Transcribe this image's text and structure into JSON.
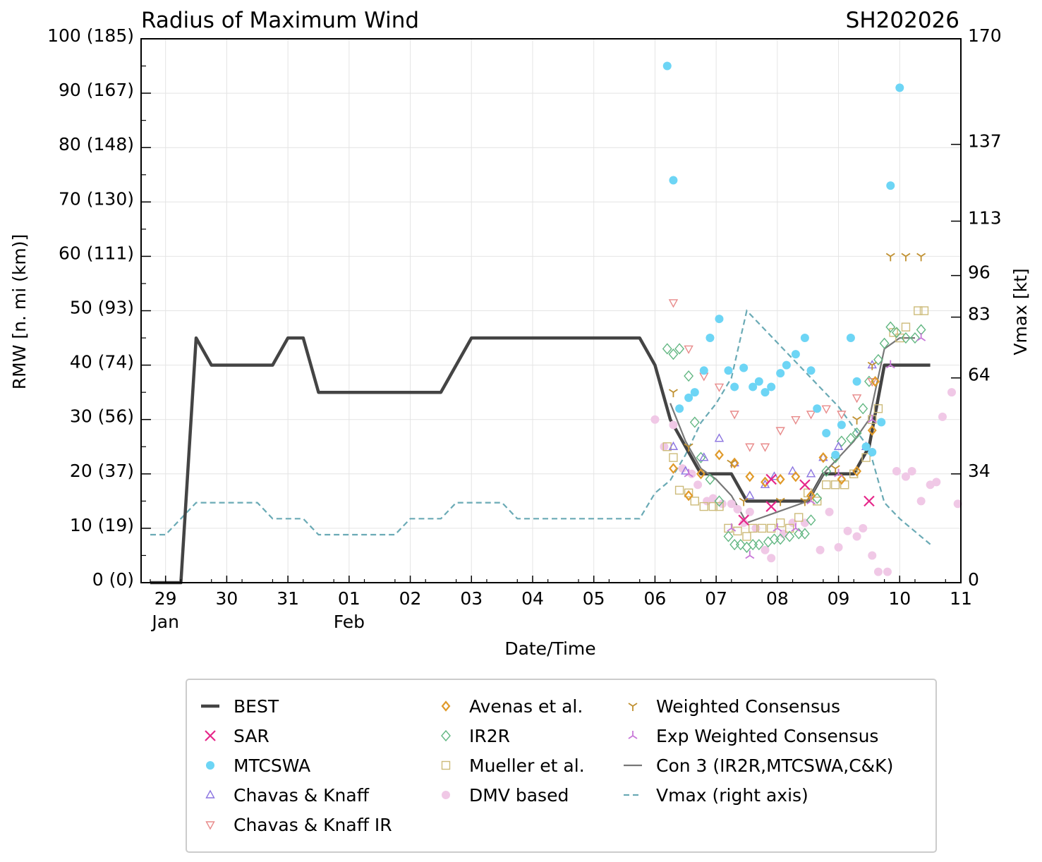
{
  "chart_data": {
    "type": "scatter",
    "title": "Radius of Maximum Wind",
    "storm_id": "SH202026",
    "xlabel": "Date/Time",
    "ylabel": "RMW [n. mi (km)]",
    "y2label": "Vmax [kt]",
    "ylim": [
      0,
      100
    ],
    "y2lim": [
      0,
      170
    ],
    "xlim": [
      -0.4,
      13.0
    ],
    "x_unit": "days since 29 Jan 00Z",
    "x_ticks": [
      {
        "x": 0,
        "day": "29",
        "month": "Jan"
      },
      {
        "x": 1,
        "day": "30",
        "month": ""
      },
      {
        "x": 2,
        "day": "31",
        "month": ""
      },
      {
        "x": 3,
        "day": "01",
        "month": "Feb"
      },
      {
        "x": 4,
        "day": "02",
        "month": ""
      },
      {
        "x": 5,
        "day": "03",
        "month": ""
      },
      {
        "x": 6,
        "day": "04",
        "month": ""
      },
      {
        "x": 7,
        "day": "05",
        "month": ""
      },
      {
        "x": 8,
        "day": "06",
        "month": ""
      },
      {
        "x": 9,
        "day": "07",
        "month": ""
      },
      {
        "x": 10,
        "day": "08",
        "month": ""
      },
      {
        "x": 11,
        "day": "09",
        "month": ""
      },
      {
        "x": 12,
        "day": "10",
        "month": ""
      },
      {
        "x": 13,
        "day": "11",
        "month": ""
      }
    ],
    "y_ticks": [
      {
        "v": 0,
        "label": "0 (0)"
      },
      {
        "v": 10,
        "label": "10 (19)"
      },
      {
        "v": 20,
        "label": "20 (37)"
      },
      {
        "v": 30,
        "label": "30 (56)"
      },
      {
        "v": 40,
        "label": "40 (74)"
      },
      {
        "v": 50,
        "label": "50 (93)"
      },
      {
        "v": 60,
        "label": "60 (111)"
      },
      {
        "v": 70,
        "label": "70 (130)"
      },
      {
        "v": 80,
        "label": "80 (148)"
      },
      {
        "v": 90,
        "label": "90 (167)"
      },
      {
        "v": 100,
        "label": "100 (185)"
      }
    ],
    "y2_ticks": [
      {
        "v": 0,
        "label": "0"
      },
      {
        "v": 34,
        "label": "34"
      },
      {
        "v": 64,
        "label": "64"
      },
      {
        "v": 83,
        "label": "83"
      },
      {
        "v": 96,
        "label": "96"
      },
      {
        "v": 113,
        "label": "113"
      },
      {
        "v": 137,
        "label": "137"
      },
      {
        "v": 170,
        "label": "170"
      }
    ],
    "legend": [
      {
        "key": "best",
        "label": "BEST"
      },
      {
        "key": "sar",
        "label": "SAR"
      },
      {
        "key": "mtcswa",
        "label": "MTCSWA"
      },
      {
        "key": "ck",
        "label": "Chavas & Knaff"
      },
      {
        "key": "ckir",
        "label": "Chavas & Knaff IR"
      },
      {
        "key": "avenas",
        "label": "Avenas et al."
      },
      {
        "key": "ir2r",
        "label": "IR2R"
      },
      {
        "key": "mueller",
        "label": "Mueller et al."
      },
      {
        "key": "dmv",
        "label": "DMV based"
      },
      {
        "key": "wc",
        "label": "Weighted Consensus"
      },
      {
        "key": "ewc",
        "label": "Exp Weighted Consensus"
      },
      {
        "key": "con3",
        "label": "Con 3 (IR2R,MTCSWA,C&K)"
      },
      {
        "key": "vmax",
        "label": "Vmax (right axis)"
      }
    ],
    "colors": {
      "best": "#444444",
      "sar": "#e6278a",
      "mtcswa": "#6dd5f5",
      "ck": "#8b74e0",
      "ckir": "#e88a8a",
      "avenas": "#e09a2a",
      "ir2r": "#63b783",
      "mueller": "#cdbb7a",
      "dmv": "#f0c8e6",
      "wc": "#c09030",
      "ewc": "#c878d8",
      "con3": "#777777",
      "vmax": "#6aaab5"
    },
    "series": {
      "best": [
        [
          -0.25,
          0
        ],
        [
          0.25,
          0
        ],
        [
          0.5,
          45
        ],
        [
          0.75,
          40
        ],
        [
          1.75,
          40
        ],
        [
          2,
          45
        ],
        [
          2.25,
          45
        ],
        [
          2.5,
          35
        ],
        [
          4.5,
          35
        ],
        [
          5,
          45
        ],
        [
          7.75,
          45
        ],
        [
          8,
          40
        ],
        [
          8.25,
          30
        ],
        [
          8.5,
          25
        ],
        [
          8.75,
          20
        ],
        [
          9.25,
          20
        ],
        [
          9.5,
          15
        ],
        [
          10.5,
          15
        ],
        [
          10.75,
          20
        ],
        [
          11.25,
          20
        ],
        [
          11.5,
          25
        ],
        [
          11.75,
          40
        ],
        [
          12.5,
          40
        ]
      ],
      "vmax": [
        [
          -0.25,
          15
        ],
        [
          0,
          15
        ],
        [
          0.5,
          25
        ],
        [
          1.5,
          25
        ],
        [
          1.75,
          20
        ],
        [
          2.25,
          20
        ],
        [
          2.5,
          15
        ],
        [
          3.75,
          15
        ],
        [
          4,
          20
        ],
        [
          4.5,
          20
        ],
        [
          4.75,
          25
        ],
        [
          5.5,
          25
        ],
        [
          5.75,
          20
        ],
        [
          7.75,
          20
        ],
        [
          8,
          28
        ],
        [
          8.25,
          32
        ],
        [
          8.5,
          40
        ],
        [
          8.75,
          50
        ],
        [
          9,
          56
        ],
        [
          9.25,
          64
        ],
        [
          9.5,
          85
        ],
        [
          10,
          75
        ],
        [
          10.5,
          65
        ],
        [
          11,
          55
        ],
        [
          11.5,
          42
        ],
        [
          11.75,
          25
        ],
        [
          12,
          20
        ],
        [
          12.5,
          12
        ]
      ],
      "con3": [
        [
          8.25,
          33
        ],
        [
          8.5,
          26
        ],
        [
          8.75,
          21
        ],
        [
          9,
          19
        ],
        [
          9.25,
          16
        ],
        [
          9.5,
          11
        ],
        [
          9.75,
          12
        ],
        [
          10,
          13
        ],
        [
          10.25,
          14
        ],
        [
          10.5,
          15
        ],
        [
          10.75,
          20
        ],
        [
          11,
          23
        ],
        [
          11.25,
          26
        ],
        [
          11.5,
          30
        ],
        [
          11.75,
          43
        ],
        [
          12,
          45
        ],
        [
          12.25,
          45
        ]
      ],
      "sar": [
        [
          9.45,
          11.5
        ],
        [
          9.9,
          14
        ],
        [
          9.9,
          19
        ],
        [
          10.45,
          18
        ],
        [
          11.5,
          15
        ]
      ],
      "mtcswa": [
        [
          8.2,
          95
        ],
        [
          8.3,
          74
        ],
        [
          8.4,
          32
        ],
        [
          8.55,
          34
        ],
        [
          8.65,
          35
        ],
        [
          8.8,
          39
        ],
        [
          8.9,
          45
        ],
        [
          9.05,
          48.5
        ],
        [
          9.2,
          39
        ],
        [
          9.3,
          36
        ],
        [
          9.45,
          39.5
        ],
        [
          9.6,
          36
        ],
        [
          9.7,
          37
        ],
        [
          9.8,
          35
        ],
        [
          9.9,
          36
        ],
        [
          10.05,
          38.5
        ],
        [
          10.15,
          40
        ],
        [
          10.3,
          42
        ],
        [
          10.45,
          45
        ],
        [
          10.55,
          39
        ],
        [
          10.65,
          32
        ],
        [
          10.8,
          27.5
        ],
        [
          10.95,
          23.5
        ],
        [
          11.05,
          29
        ],
        [
          11.2,
          45
        ],
        [
          11.3,
          37
        ],
        [
          11.45,
          25
        ],
        [
          11.55,
          24
        ],
        [
          11.7,
          29.5
        ],
        [
          11.85,
          73
        ],
        [
          12.0,
          91
        ]
      ],
      "ck": [
        [
          8.3,
          25
        ],
        [
          8.5,
          20.5
        ],
        [
          8.8,
          23
        ],
        [
          9.05,
          26.5
        ],
        [
          9.3,
          22
        ],
        [
          9.55,
          16
        ],
        [
          9.8,
          18
        ],
        [
          9.95,
          19.5
        ],
        [
          10.25,
          20.5
        ],
        [
          10.55,
          20
        ],
        [
          10.75,
          23
        ],
        [
          11.0,
          25
        ],
        [
          11.45,
          25
        ],
        [
          11.55,
          40
        ]
      ],
      "ckir": [
        [
          8.3,
          51.5
        ],
        [
          8.55,
          43
        ],
        [
          8.8,
          38
        ],
        [
          9.05,
          36
        ],
        [
          9.3,
          31
        ],
        [
          9.55,
          25
        ],
        [
          9.8,
          25
        ],
        [
          10.05,
          28
        ],
        [
          10.3,
          30
        ],
        [
          10.55,
          31
        ],
        [
          10.8,
          32
        ],
        [
          11.05,
          31
        ],
        [
          11.3,
          34
        ],
        [
          11.55,
          37
        ]
      ],
      "avenas": [
        [
          8.3,
          21
        ],
        [
          8.55,
          16
        ],
        [
          8.75,
          20
        ],
        [
          9.05,
          23.5
        ],
        [
          9.3,
          22
        ],
        [
          9.55,
          19.5
        ],
        [
          9.8,
          18.5
        ],
        [
          10.05,
          19
        ],
        [
          10.3,
          19.5
        ],
        [
          10.55,
          16
        ],
        [
          10.75,
          23
        ],
        [
          11.05,
          19
        ],
        [
          11.3,
          20.5
        ],
        [
          11.55,
          28
        ],
        [
          11.6,
          37
        ]
      ],
      "ir2r": [
        [
          8.2,
          43
        ],
        [
          8.3,
          42
        ],
        [
          8.4,
          43
        ],
        [
          8.55,
          38
        ],
        [
          8.65,
          29.5
        ],
        [
          8.75,
          23
        ],
        [
          8.9,
          19
        ],
        [
          9.05,
          15
        ],
        [
          9.2,
          8.5
        ],
        [
          9.3,
          7
        ],
        [
          9.4,
          7
        ],
        [
          9.5,
          6.5
        ],
        [
          9.6,
          7
        ],
        [
          9.7,
          7
        ],
        [
          9.85,
          7.5
        ],
        [
          9.95,
          8
        ],
        [
          10.05,
          8
        ],
        [
          10.2,
          8.5
        ],
        [
          10.35,
          9
        ],
        [
          10.45,
          9
        ],
        [
          10.55,
          11.5
        ],
        [
          10.65,
          15.5
        ],
        [
          10.8,
          20.5
        ],
        [
          10.95,
          23
        ],
        [
          11.05,
          26
        ],
        [
          11.2,
          26.5
        ],
        [
          11.3,
          27.5
        ],
        [
          11.4,
          32
        ],
        [
          11.5,
          37
        ],
        [
          11.65,
          41
        ],
        [
          11.75,
          44
        ],
        [
          11.85,
          47
        ],
        [
          11.95,
          46
        ],
        [
          12.1,
          45
        ],
        [
          12.25,
          45
        ],
        [
          12.35,
          46.5
        ]
      ],
      "mueller": [
        [
          8.2,
          25
        ],
        [
          8.3,
          23
        ],
        [
          8.4,
          17
        ],
        [
          8.55,
          16.5
        ],
        [
          8.65,
          15
        ],
        [
          8.8,
          14
        ],
        [
          8.95,
          14
        ],
        [
          9.05,
          14
        ],
        [
          9.2,
          10
        ],
        [
          9.35,
          9.5
        ],
        [
          9.5,
          8.5
        ],
        [
          9.6,
          10
        ],
        [
          9.75,
          10
        ],
        [
          9.9,
          10
        ],
        [
          10.05,
          11
        ],
        [
          10.2,
          10
        ],
        [
          10.35,
          12
        ],
        [
          10.5,
          16.5
        ],
        [
          10.65,
          15
        ],
        [
          10.8,
          18
        ],
        [
          10.95,
          18
        ],
        [
          11.1,
          18
        ],
        [
          11.25,
          20
        ],
        [
          11.45,
          23
        ],
        [
          11.55,
          30
        ],
        [
          11.65,
          32
        ],
        [
          11.9,
          46
        ],
        [
          12.0,
          45
        ],
        [
          12.1,
          47
        ],
        [
          12.3,
          50
        ],
        [
          12.4,
          50
        ]
      ],
      "dmv": [
        [
          8.0,
          30
        ],
        [
          8.15,
          25
        ],
        [
          8.3,
          29
        ],
        [
          8.45,
          21
        ],
        [
          8.6,
          20
        ],
        [
          8.7,
          18
        ],
        [
          8.85,
          15
        ],
        [
          8.95,
          15.5
        ],
        [
          9.1,
          14.5
        ],
        [
          9.25,
          14.5
        ],
        [
          9.35,
          13.5
        ],
        [
          9.45,
          11
        ],
        [
          9.55,
          13
        ],
        [
          9.65,
          10
        ],
        [
          9.8,
          6
        ],
        [
          9.9,
          4.5
        ],
        [
          10.1,
          9
        ],
        [
          10.25,
          11
        ],
        [
          10.45,
          11
        ],
        [
          10.7,
          6
        ],
        [
          10.85,
          13
        ],
        [
          11.0,
          6.5
        ],
        [
          11.15,
          9.5
        ],
        [
          11.3,
          8.5
        ],
        [
          11.4,
          10
        ],
        [
          11.55,
          5
        ],
        [
          11.65,
          2
        ],
        [
          11.8,
          2
        ],
        [
          11.95,
          20.5
        ],
        [
          12.1,
          19.5
        ],
        [
          12.2,
          20.5
        ],
        [
          12.35,
          15
        ],
        [
          12.5,
          18
        ],
        [
          12.6,
          18.5
        ],
        [
          12.7,
          30.5
        ],
        [
          12.85,
          35
        ],
        [
          12.95,
          14.5
        ]
      ],
      "wc": [
        [
          8.3,
          35
        ],
        [
          8.55,
          25
        ],
        [
          9.25,
          22
        ],
        [
          9.45,
          15
        ],
        [
          10.05,
          15
        ],
        [
          10.45,
          15
        ],
        [
          10.95,
          21
        ],
        [
          11.3,
          30
        ],
        [
          11.55,
          40
        ],
        [
          11.85,
          60
        ],
        [
          12.1,
          60
        ],
        [
          12.35,
          60
        ]
      ],
      "ewc": [
        [
          8.55,
          20
        ],
        [
          9.25,
          10
        ],
        [
          9.55,
          5
        ],
        [
          10.0,
          10
        ],
        [
          10.3,
          10
        ],
        [
          10.55,
          15
        ],
        [
          11.0,
          20
        ],
        [
          11.55,
          30
        ],
        [
          11.85,
          40
        ],
        [
          12.35,
          45
        ]
      ]
    }
  }
}
